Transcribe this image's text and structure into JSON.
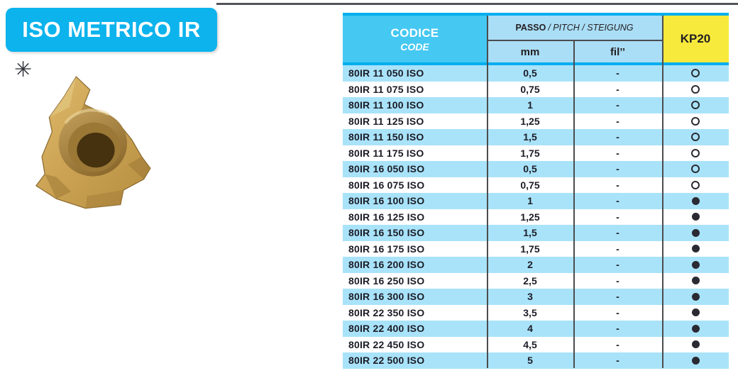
{
  "page": {
    "title": "ISO METRICO IR",
    "asterisk_symbol": "✳"
  },
  "colors": {
    "accent_cyan": "#00aeef",
    "title_cyan": "#0cb3ec",
    "codice_cell_cyan": "#45c8f2",
    "header_light_blue": "#aadef6",
    "row_light_blue": "#a9e3fa",
    "kp20_yellow": "#f7ea3c",
    "divider_dark": "#4c4c4e",
    "text_dark": "#1c1c26",
    "insert_gold": "#c9a250"
  },
  "table": {
    "header": {
      "codice": "CODICE",
      "code": "CODE",
      "passo": "PASSO",
      "passo_rest": "/ PITCH / STEIGUNG",
      "mm": "mm",
      "fil": "fil’’",
      "kp20": "KP20"
    },
    "legend": {
      "open_symbol_meaning": "open-circle",
      "filled_symbol_meaning": "filled-dot"
    },
    "rows": [
      {
        "code": "80IR 11 050 ISO",
        "mm": "0,5",
        "fil": "-",
        "kp20": "open"
      },
      {
        "code": "80IR 11 075 ISO",
        "mm": "0,75",
        "fil": "-",
        "kp20": "open"
      },
      {
        "code": "80IR 11 100 ISO",
        "mm": "1",
        "fil": "-",
        "kp20": "open"
      },
      {
        "code": "80IR 11 125 ISO",
        "mm": "1,25",
        "fil": "-",
        "kp20": "open"
      },
      {
        "code": "80IR 11 150 ISO",
        "mm": "1,5",
        "fil": "-",
        "kp20": "open"
      },
      {
        "code": "80IR 11 175 ISO",
        "mm": "1,75",
        "fil": "-",
        "kp20": "open"
      },
      {
        "code": "80IR 16 050 ISO",
        "mm": "0,5",
        "fil": "-",
        "kp20": "open"
      },
      {
        "code": "80IR 16 075 ISO",
        "mm": "0,75",
        "fil": "-",
        "kp20": "open"
      },
      {
        "code": "80IR 16 100 ISO",
        "mm": "1",
        "fil": "-",
        "kp20": "filled"
      },
      {
        "code": "80IR 16 125 ISO",
        "mm": "1,25",
        "fil": "-",
        "kp20": "filled"
      },
      {
        "code": "80IR 16 150 ISO",
        "mm": "1,5",
        "fil": "-",
        "kp20": "filled"
      },
      {
        "code": "80IR 16 175 ISO",
        "mm": "1,75",
        "fil": "-",
        "kp20": "filled"
      },
      {
        "code": "80IR 16 200 ISO",
        "mm": "2",
        "fil": "-",
        "kp20": "filled"
      },
      {
        "code": "80IR 16 250 ISO",
        "mm": "2,5",
        "fil": "-",
        "kp20": "filled"
      },
      {
        "code": "80IR 16 300 ISO",
        "mm": "3",
        "fil": "-",
        "kp20": "filled"
      },
      {
        "code": "80IR 22 350 ISO",
        "mm": "3,5",
        "fil": "-",
        "kp20": "filled"
      },
      {
        "code": "80IR 22 400 ISO",
        "mm": "4",
        "fil": "-",
        "kp20": "filled"
      },
      {
        "code": "80IR 22 450 ISO",
        "mm": "4,5",
        "fil": "-",
        "kp20": "filled"
      },
      {
        "code": "80IR 22 500 ISO",
        "mm": "5",
        "fil": "-",
        "kp20": "filled"
      }
    ]
  }
}
